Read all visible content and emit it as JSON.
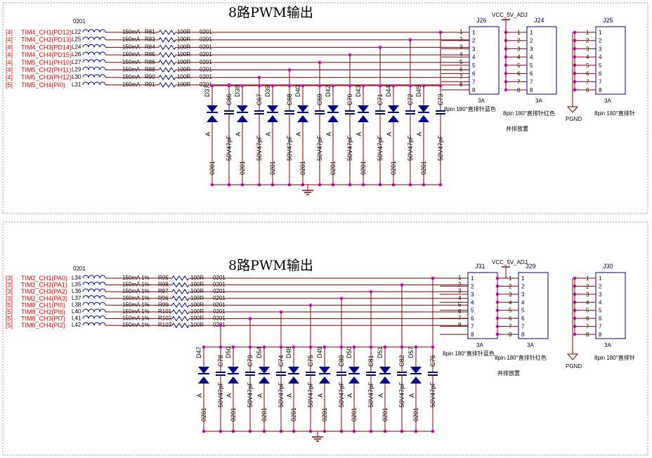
{
  "panels": [
    {
      "title": "8路PWM输出",
      "package_label": "0201",
      "nets": [
        {
          "sheet": "[4]",
          "signal": "TIM4_CH1(PD12)",
          "ind": "L22",
          "cur": "150mA",
          "res": "R81",
          "val": "100R",
          "pkg": "0201",
          "pin": "1"
        },
        {
          "sheet": "[4]",
          "signal": "TIM4_CH2(PD13)",
          "ind": "L25",
          "cur": "150mA",
          "res": "R83",
          "val": "100R",
          "pkg": "0201",
          "pin": "2"
        },
        {
          "sheet": "[4]",
          "signal": "TIM4_CH3(PD14)",
          "ind": "L24",
          "cur": "150mA",
          "res": "R84",
          "val": "100R",
          "pkg": "0201",
          "pin": "3"
        },
        {
          "sheet": "[4]",
          "signal": "TIM4_CH4(PD15)",
          "ind": "L26",
          "cur": "150mA",
          "res": "R85",
          "val": "100R",
          "pkg": "0201",
          "pin": "4"
        },
        {
          "sheet": "[4]",
          "signal": "TIM5_CH1(PH10)",
          "ind": "L27",
          "cur": "150mA",
          "res": "R86",
          "val": "100R",
          "pkg": "0201",
          "pin": "5"
        },
        {
          "sheet": "[4]",
          "signal": "TIM5_CH2(PH11)",
          "ind": "L29",
          "cur": "150mA",
          "res": "R88",
          "val": "100R",
          "pkg": "0201",
          "pin": "6"
        },
        {
          "sheet": "[4]",
          "signal": "TIM5_CH3(PH12)",
          "ind": "L30",
          "cur": "150mA",
          "res": "R90",
          "val": "100R",
          "pkg": "0201",
          "pin": "7"
        },
        {
          "sheet": "[5]",
          "signal": "TIM5_CH4(PI0)",
          "ind": "L31",
          "cur": "150mA",
          "res": "R91",
          "val": "100R",
          "pkg": "0201",
          "pin": "8"
        }
      ],
      "diodes": [
        "D37",
        "D38",
        "D39",
        "D40",
        "D42",
        "D43",
        "D44",
        "D45"
      ],
      "caps": [
        "C66",
        "C67",
        "C68",
        "C69",
        "C70",
        "C71",
        "C72",
        "C73"
      ],
      "diode_label": "A",
      "cap_value": "50V47pF",
      "cap_pkg": "0201",
      "conn1": {
        "name": "J26",
        "rating": "3A",
        "desc": "8pin 180°直排针蓝色"
      },
      "conn2": {
        "name": "J24",
        "rating": "3A",
        "desc": "8pin 180°直排针红色",
        "note": "并排放置",
        "supply": "VCC_5V_ADJ"
      },
      "conn3": {
        "name": "J25",
        "rating": "3A",
        "desc": "8pin 180°直排针",
        "gnd": "PGND"
      },
      "pins": [
        "1",
        "2",
        "3",
        "4",
        "5",
        "6",
        "7",
        "8"
      ]
    },
    {
      "title": "8路PWM输出",
      "package_label": "0201",
      "nets": [
        {
          "sheet": "[3]",
          "signal": "TIM2_CH1(PA0)",
          "ind": "L34",
          "cur": "150mA 1%",
          "res": "R95",
          "val": "100R",
          "pkg": "0201",
          "pin": "1"
        },
        {
          "sheet": "[3]",
          "signal": "TIM2_CH2(PA1)",
          "ind": "L35",
          "cur": "150mA 1%",
          "res": "R98",
          "val": "100R",
          "pkg": "0201",
          "pin": "2"
        },
        {
          "sheet": "[3]",
          "signal": "TIM2_CH3(PA2)",
          "ind": "L36",
          "cur": "150mA 1%",
          "res": "R97",
          "val": "100R",
          "pkg": "0201",
          "pin": "3"
        },
        {
          "sheet": "[3]",
          "signal": "TIM2_CH4(PA3)",
          "ind": "L37",
          "cur": "150mA 1%",
          "res": "R96",
          "val": "100R",
          "pkg": "0201",
          "pin": "4"
        },
        {
          "sheet": "[5]",
          "signal": "TIM8_CH1(PI5)",
          "ind": "L38",
          "cur": "150mA 1%",
          "res": "R99",
          "val": "100R",
          "pkg": "0201",
          "pin": "5"
        },
        {
          "sheet": "[5]",
          "signal": "TIM8_CH2(PI6)",
          "ind": "L40",
          "cur": "150mA 1%",
          "res": "R101",
          "val": "100R",
          "pkg": "0201",
          "pin": "6"
        },
        {
          "sheet": "[5]",
          "signal": "TIM8_CH3(PI7)",
          "ind": "L41",
          "cur": "150mA 1%",
          "res": "R102",
          "val": "100R",
          "pkg": "0201",
          "pin": "7"
        },
        {
          "sheet": "[5]",
          "signal": "TIM8_CH4(PI2)",
          "ind": "L42",
          "cur": "150mA 1%",
          "res": "R103",
          "val": "100R",
          "pkg": "0201",
          "pin": "8"
        }
      ],
      "diodes": [
        "D47",
        "D50",
        "D54",
        "D48",
        "D49",
        "D50",
        "D51",
        "D57"
      ],
      "caps": [
        "C78",
        "C79",
        "C74",
        "C75",
        "C80",
        "C81",
        "C82",
        "C76"
      ],
      "diode_label": "A",
      "cap_value": "50V47pF",
      "cap_pkg": "0201",
      "conn1": {
        "name": "J31",
        "rating": "3A",
        "desc": "8pin 180°直排针蓝色"
      },
      "conn2": {
        "name": "J29",
        "rating": "3A",
        "desc": "8pin 180°直排针红色",
        "note": "并排放置",
        "supply": "VCC_5V_ADJ"
      },
      "conn3": {
        "name": "J30",
        "rating": "3A",
        "desc": "8pin 180°直排针",
        "gnd": "PGND"
      },
      "pins": [
        "1",
        "2",
        "3",
        "4",
        "5",
        "6",
        "7",
        "8"
      ]
    }
  ],
  "colors": {
    "wire": "#800000",
    "part": "#00008b",
    "node": "#e600e6",
    "signal": "#e00000",
    "frame": "#999999"
  }
}
